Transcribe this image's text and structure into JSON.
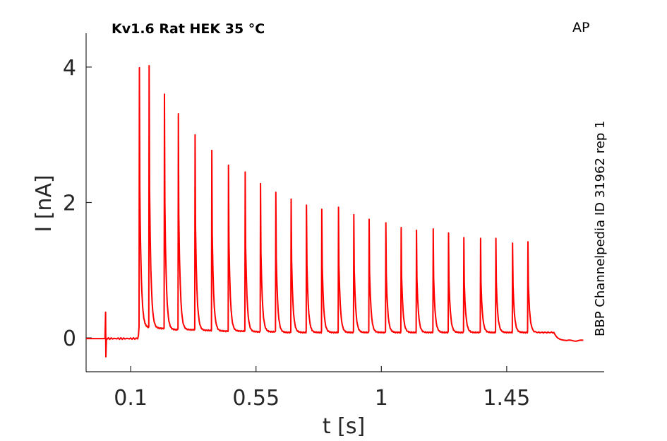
{
  "chart_data": {
    "type": "line",
    "title": "Kv1.6  Rat  HEK  35 °C",
    "protocol_label": "AP",
    "source_label": "BBP Channelpedia ID 31962 rep 1",
    "xlabel": "t [s]",
    "ylabel": "I [nA]",
    "xlim": [
      -0.06,
      1.8
    ],
    "ylim": [
      -0.5,
      4.5
    ],
    "xticks": [
      0.1,
      0.55,
      1,
      1.45
    ],
    "xtick_labels": [
      "0.1",
      "0.55",
      "1",
      "1.45"
    ],
    "yticks": [
      0,
      2,
      4
    ],
    "ytick_labels": [
      "0",
      "2",
      "4"
    ],
    "grid": false,
    "series": [
      {
        "color": "#ff0000",
        "baseline": -0.01,
        "artifact": {
          "t": 0.01,
          "max": 0.38,
          "min": -0.28
        },
        "train_start": 0.13,
        "train_end": 1.62,
        "end_level": -0.04,
        "spike_times": [
          0.13,
          0.165,
          0.22,
          0.27,
          0.33,
          0.39,
          0.45,
          0.51,
          0.565,
          0.62,
          0.675,
          0.73,
          0.785,
          0.845,
          0.9,
          0.955,
          1.015,
          1.07,
          1.125,
          1.185,
          1.24,
          1.295,
          1.355,
          1.41,
          1.47,
          1.525
        ],
        "spike_peaks": [
          3.99,
          4.02,
          3.6,
          3.31,
          3.0,
          2.77,
          2.55,
          2.45,
          2.28,
          2.15,
          2.05,
          1.96,
          1.9,
          1.93,
          1.82,
          1.75,
          1.7,
          1.63,
          1.59,
          1.61,
          1.55,
          1.48,
          1.47,
          1.47,
          1.4,
          1.42
        ],
        "trough_levels": [
          0.15,
          0.14,
          0.12,
          0.12,
          0.11,
          0.1,
          0.1,
          0.09,
          0.09,
          0.08,
          0.08,
          0.08,
          0.08,
          0.08,
          0.08,
          0.08,
          0.08,
          0.08,
          0.08,
          0.08,
          0.08,
          0.08,
          0.08,
          0.08,
          0.08,
          0.08
        ]
      }
    ]
  }
}
